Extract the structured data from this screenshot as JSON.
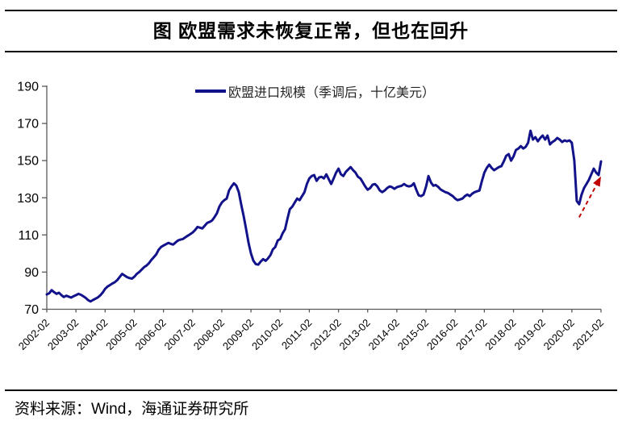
{
  "title": "图  欧盟需求未恢复正常，但也在回升",
  "legend": {
    "label": "欧盟进口规模（季调后，十亿美元）"
  },
  "source": "资料来源：Wind，海通证券研究所",
  "colors": {
    "line": "#12128a",
    "legend_marker": "#12128a",
    "arrow": "#c00000",
    "axis": "#595959",
    "tick_text": "#000000"
  },
  "chart_data": {
    "type": "line",
    "title": "图 欧盟需求未恢复正常，但也在回升",
    "series_name": "欧盟进口规模（季调后，十亿美元）",
    "frequency": "monthly",
    "x_start": "2002-02",
    "x_end": "2021-02",
    "x_tick_labels": [
      "2002-02",
      "2003-02",
      "2004-02",
      "2005-02",
      "2006-02",
      "2007-02",
      "2008-02",
      "2009-02",
      "2010-02",
      "2011-02",
      "2012-02",
      "2013-02",
      "2014-02",
      "2015-02",
      "2016-02",
      "2017-02",
      "2018-02",
      "2019-02",
      "2020-02",
      "2021-02"
    ],
    "ylim": [
      70,
      190
    ],
    "y_ticks": [
      70,
      90,
      110,
      130,
      150,
      170,
      190
    ],
    "grid": false,
    "legend_position": "top-center",
    "values": [
      78.0,
      78.6,
      80.3,
      79.2,
      78.3,
      78.9,
      77.6,
      76.6,
      77.3,
      76.8,
      76.3,
      77.0,
      77.6,
      78.3,
      77.8,
      77.0,
      76.1,
      74.9,
      74.2,
      75.0,
      75.7,
      76.4,
      77.5,
      79.0,
      81.0,
      82.2,
      83.0,
      83.9,
      84.6,
      85.7,
      87.4,
      89.0,
      88.2,
      87.3,
      86.8,
      86.5,
      87.5,
      89.0,
      90.0,
      91.3,
      92.6,
      93.5,
      94.8,
      96.5,
      98.0,
      99.5,
      102.0,
      103.5,
      104.3,
      105.0,
      105.7,
      105.2,
      104.8,
      106.0,
      107.0,
      107.5,
      107.8,
      108.7,
      109.6,
      110.4,
      111.3,
      112.6,
      114.3,
      113.9,
      113.5,
      115.0,
      116.5,
      117.0,
      117.8,
      119.6,
      121.7,
      125.2,
      127.4,
      128.7,
      129.6,
      134.0,
      136.1,
      137.8,
      136.5,
      133.0,
      126.1,
      120.0,
      113.0,
      105.7,
      100.0,
      96.1,
      94.3,
      94.0,
      95.7,
      97.0,
      96.1,
      97.4,
      99.1,
      102.2,
      103.5,
      107.0,
      107.8,
      110.9,
      113.0,
      118.7,
      123.9,
      125.2,
      127.4,
      129.6,
      128.7,
      130.9,
      133.0,
      137.4,
      140.4,
      141.7,
      142.2,
      139.1,
      140.9,
      141.3,
      140.4,
      142.6,
      140.0,
      137.4,
      140.4,
      143.5,
      145.7,
      142.6,
      141.7,
      143.9,
      145.2,
      146.5,
      144.8,
      143.5,
      141.3,
      140.4,
      138.3,
      136.1,
      134.3,
      135.2,
      137.0,
      137.4,
      136.1,
      133.9,
      133.0,
      133.9,
      135.2,
      136.1,
      135.7,
      134.8,
      135.7,
      136.1,
      136.5,
      137.4,
      136.5,
      136.1,
      136.5,
      137.8,
      134.3,
      131.3,
      130.9,
      131.7,
      136.0,
      141.7,
      138.3,
      136.5,
      136.9,
      135.9,
      134.5,
      133.7,
      133.0,
      132.6,
      131.7,
      130.9,
      129.6,
      128.7,
      129.1,
      129.6,
      130.9,
      131.7,
      130.9,
      132.2,
      133.0,
      133.5,
      133.9,
      139.1,
      143.5,
      146.1,
      147.8,
      146.1,
      144.8,
      145.7,
      146.5,
      147.0,
      149.6,
      152.6,
      153.5,
      150.0,
      152.2,
      155.7,
      156.5,
      157.8,
      156.5,
      157.4,
      159.6,
      166.1,
      161.3,
      162.6,
      160.4,
      162.2,
      163.5,
      161.3,
      163.5,
      158.7,
      160.0,
      160.9,
      162.2,
      161.3,
      160.0,
      160.9,
      160.4,
      160.9,
      159.6,
      150.0,
      128.3,
      126.5,
      131.7,
      135.2,
      137.4,
      139.6,
      142.6,
      145.7,
      143.5,
      142.2,
      149.6
    ],
    "annotation_arrow": {
      "from_x": "2020-05",
      "from_y": 119.5,
      "to_x": "2021-02",
      "to_y": 141.5,
      "color": "#c00000",
      "style": "dashed"
    }
  }
}
